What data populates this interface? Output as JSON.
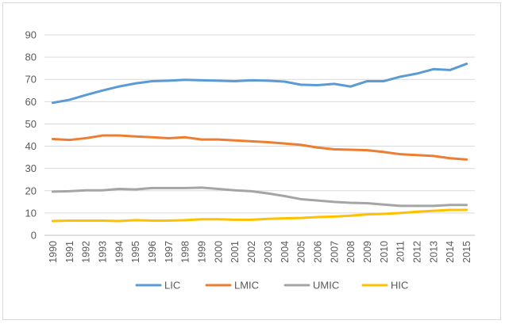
{
  "chart_data": {
    "type": "line",
    "title": "",
    "xlabel": "",
    "ylabel": "",
    "ylim": [
      0,
      90
    ],
    "yticks": [
      0,
      10,
      20,
      30,
      40,
      50,
      60,
      70,
      80,
      90
    ],
    "grid": true,
    "legend_position": "bottom",
    "x": [
      "1990",
      "1991",
      "1992",
      "1993",
      "1994",
      "1995",
      "1996",
      "1997",
      "1998",
      "1999",
      "2000",
      "2001",
      "2002",
      "2003",
      "2004",
      "2005",
      "2006",
      "2007",
      "2008",
      "2009",
      "2010",
      "2011",
      "2012",
      "2013",
      "2014",
      "2015"
    ],
    "series": [
      {
        "name": "LIC",
        "color": "#5b9bd5",
        "values": [
          59.5,
          60.8,
          63.0,
          65.0,
          66.8,
          68.2,
          69.2,
          69.4,
          69.8,
          69.6,
          69.4,
          69.2,
          69.6,
          69.4,
          69.0,
          67.6,
          67.4,
          68.0,
          66.8,
          69.2,
          69.2,
          71.2,
          72.6,
          74.6,
          74.2,
          77.0
        ]
      },
      {
        "name": "LMIC",
        "color": "#ed7d31",
        "values": [
          43.2,
          42.8,
          43.6,
          44.8,
          44.8,
          44.4,
          44.0,
          43.6,
          44.0,
          43.0,
          43.0,
          42.6,
          42.2,
          41.8,
          41.2,
          40.6,
          39.4,
          38.6,
          38.4,
          38.2,
          37.4,
          36.4,
          36.0,
          35.6,
          34.6,
          34.0
        ]
      },
      {
        "name": "UMIC",
        "color": "#a5a5a5",
        "values": [
          19.6,
          19.8,
          20.2,
          20.2,
          20.8,
          20.6,
          21.2,
          21.2,
          21.2,
          21.4,
          20.8,
          20.2,
          19.8,
          18.8,
          17.6,
          16.2,
          15.6,
          15.0,
          14.6,
          14.4,
          13.8,
          13.2,
          13.2,
          13.2,
          13.6,
          13.6
        ]
      },
      {
        "name": "HIC",
        "color": "#ffc000",
        "values": [
          6.4,
          6.6,
          6.6,
          6.6,
          6.4,
          6.8,
          6.6,
          6.6,
          6.8,
          7.2,
          7.2,
          7.0,
          7.0,
          7.4,
          7.6,
          7.8,
          8.2,
          8.4,
          8.8,
          9.4,
          9.6,
          10.0,
          10.6,
          11.0,
          11.4,
          11.4
        ]
      }
    ]
  }
}
